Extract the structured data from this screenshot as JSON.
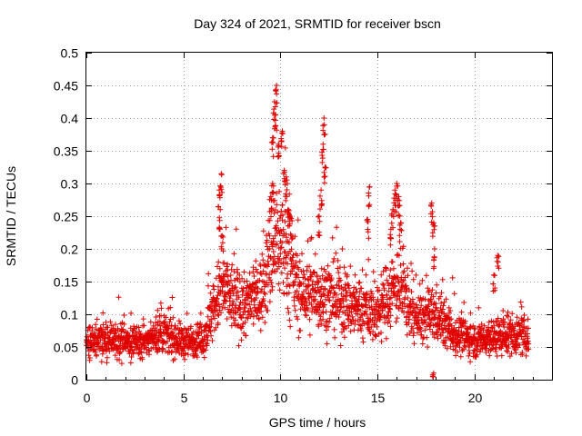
{
  "chart_data": {
    "type": "scatter",
    "title": "Day 324 of 2021, SRMTID for receiver bscn",
    "xlabel": "GPS time / hours",
    "ylabel": "SRMTID / TECUs",
    "xlim": [
      0,
      24
    ],
    "ylim": [
      0,
      0.5
    ],
    "xticks": [
      0,
      5,
      10,
      15,
      20
    ],
    "yticks": [
      0,
      0.05,
      0.1,
      0.15,
      0.2,
      0.25,
      0.3,
      0.35,
      0.4,
      0.45,
      0.5
    ],
    "xtick_labels": [
      "0",
      "5",
      "10",
      "15",
      "20"
    ],
    "ytick_labels": [
      "0",
      "0.05",
      "0.1",
      "0.15",
      "0.2",
      "0.25",
      "0.3",
      "0.35",
      "0.4",
      "0.45",
      "0.5"
    ],
    "marker": "+",
    "color": "#e00000",
    "grid": true,
    "series": [
      {
        "name": "SRMTID",
        "profile": [
          {
            "x": 0.0,
            "y": 0.055
          },
          {
            "x": 1.0,
            "y": 0.06
          },
          {
            "x": 2.0,
            "y": 0.058
          },
          {
            "x": 3.0,
            "y": 0.06
          },
          {
            "x": 4.0,
            "y": 0.07
          },
          {
            "x": 5.0,
            "y": 0.058
          },
          {
            "x": 6.0,
            "y": 0.06
          },
          {
            "x": 6.7,
            "y": 0.12
          },
          {
            "x": 7.0,
            "y": 0.14
          },
          {
            "x": 8.0,
            "y": 0.11
          },
          {
            "x": 9.0,
            "y": 0.13
          },
          {
            "x": 9.8,
            "y": 0.22
          },
          {
            "x": 10.2,
            "y": 0.2
          },
          {
            "x": 11.0,
            "y": 0.13
          },
          {
            "x": 12.0,
            "y": 0.13
          },
          {
            "x": 13.0,
            "y": 0.12
          },
          {
            "x": 14.0,
            "y": 0.11
          },
          {
            "x": 15.0,
            "y": 0.1
          },
          {
            "x": 16.0,
            "y": 0.15
          },
          {
            "x": 17.0,
            "y": 0.09
          },
          {
            "x": 18.0,
            "y": 0.1
          },
          {
            "x": 19.0,
            "y": 0.07
          },
          {
            "x": 20.0,
            "y": 0.06
          },
          {
            "x": 21.0,
            "y": 0.065
          },
          {
            "x": 22.0,
            "y": 0.07
          },
          {
            "x": 22.8,
            "y": 0.065
          }
        ],
        "noise": 0.025,
        "x_range": [
          0,
          22.8
        ],
        "count": 2400,
        "bursts": [
          {
            "x": 6.95,
            "y": 0.315
          },
          {
            "x": 6.85,
            "y": 0.29
          },
          {
            "x": 6.9,
            "y": 0.26
          },
          {
            "x": 7.0,
            "y": 0.22
          },
          {
            "x": 9.8,
            "y": 0.45
          },
          {
            "x": 9.7,
            "y": 0.425
          },
          {
            "x": 9.75,
            "y": 0.405
          },
          {
            "x": 9.6,
            "y": 0.37
          },
          {
            "x": 9.9,
            "y": 0.36
          },
          {
            "x": 10.1,
            "y": 0.38
          },
          {
            "x": 10.2,
            "y": 0.32
          },
          {
            "x": 10.3,
            "y": 0.31
          },
          {
            "x": 10.4,
            "y": 0.26
          },
          {
            "x": 10.5,
            "y": 0.25
          },
          {
            "x": 9.6,
            "y": 0.3
          },
          {
            "x": 9.5,
            "y": 0.28
          },
          {
            "x": 12.25,
            "y": 0.4
          },
          {
            "x": 12.2,
            "y": 0.36
          },
          {
            "x": 12.3,
            "y": 0.325
          },
          {
            "x": 12.1,
            "y": 0.29
          },
          {
            "x": 12.0,
            "y": 0.25
          },
          {
            "x": 14.6,
            "y": 0.295
          },
          {
            "x": 14.5,
            "y": 0.245
          },
          {
            "x": 16.0,
            "y": 0.3
          },
          {
            "x": 15.9,
            "y": 0.29
          },
          {
            "x": 16.1,
            "y": 0.28
          },
          {
            "x": 15.8,
            "y": 0.26
          },
          {
            "x": 15.7,
            "y": 0.23
          },
          {
            "x": 16.2,
            "y": 0.24
          },
          {
            "x": 17.8,
            "y": 0.27
          },
          {
            "x": 17.9,
            "y": 0.24
          },
          {
            "x": 17.95,
            "y": 0.2
          },
          {
            "x": 21.2,
            "y": 0.19
          },
          {
            "x": 21.0,
            "y": 0.16
          },
          {
            "x": 17.9,
            "y": 0.01
          }
        ]
      }
    ]
  }
}
